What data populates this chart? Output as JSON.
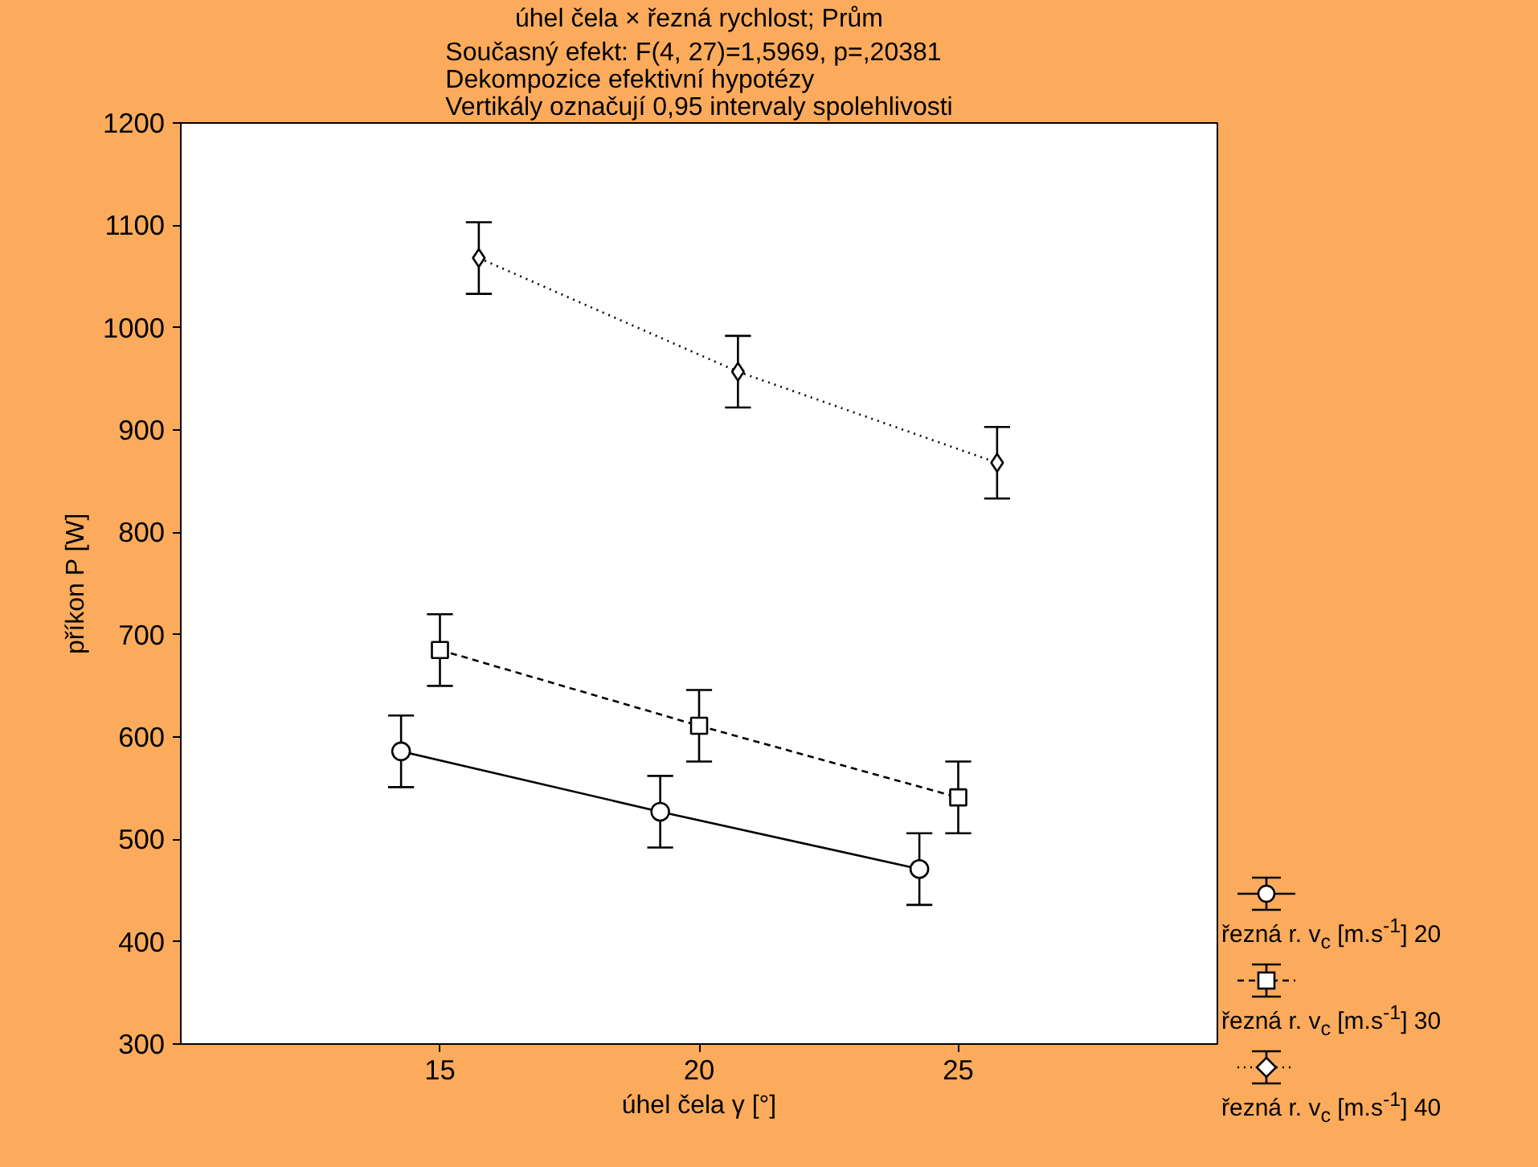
{
  "chart_data": {
    "type": "line",
    "title": "úhel čela × řezná rychlost; Prům",
    "subtitle": "Současný efekt: F(4, 27)=1,5969, p=,20381\nDekompozice efektivní hypotézy\nVertikály označují 0,95 intervaly spolehlivosti",
    "xlabel": "úhel čela γ [°]",
    "ylabel": "příkon P [W]",
    "xlim": [
      10,
      30
    ],
    "xticks": [
      15,
      20,
      25
    ],
    "ylim": [
      300,
      1200
    ],
    "yticks": [
      300,
      400,
      500,
      600,
      700,
      800,
      900,
      1000,
      1100,
      1200
    ],
    "grid": false,
    "legend": "bottom right",
    "series": [
      {
        "name": "řezná r. v$_{c}$ [m.s$^{-1}$]  20",
        "color": "#000000",
        "marker": "circle",
        "line_style": "solid",
        "x": [
          14.25,
          19.25,
          24.25
        ],
        "values": [
          586,
          527,
          471
        ],
        "errors": [
          35,
          35,
          35
        ]
      },
      {
        "name": "řezná r. v$_{c}$ [m.s$^{-1}$]  30",
        "color": "#000000",
        "marker": "square",
        "line_style": "dashed",
        "x": [
          15,
          20,
          25
        ],
        "values": [
          685,
          611,
          541
        ],
        "errors": [
          35,
          35,
          35
        ]
      },
      {
        "name": "řezná r. v$_{c}$ [m.s$^{-1}$]  40",
        "color": "#000000",
        "marker": "diamond",
        "line_style": "dotted",
        "x": [
          15.75,
          20.75,
          25.75
        ],
        "values": [
          1068,
          957,
          868
        ],
        "errors": [
          35,
          35,
          35
        ]
      }
    ]
  }
}
